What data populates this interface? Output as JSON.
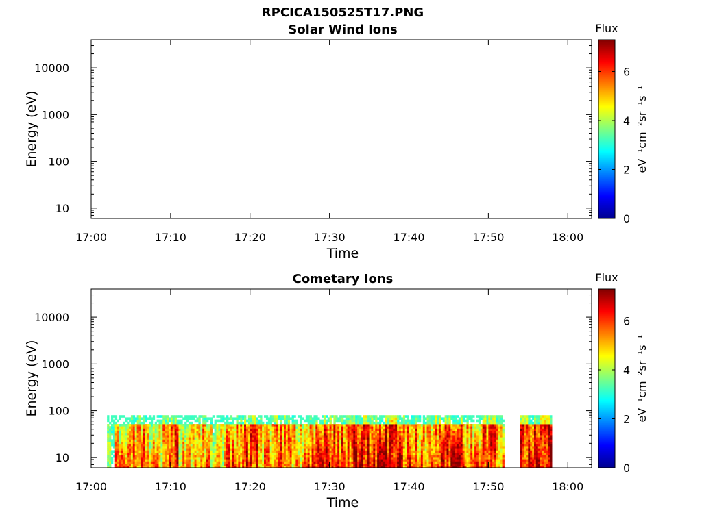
{
  "figure": {
    "title": "RPCICA150525T17.PNG"
  },
  "chart_data": [
    {
      "type": "heatmap",
      "title": "Solar Wind Ions",
      "xlabel": "Time",
      "ylabel": "Energy (eV)",
      "yscale": "log",
      "xlim": [
        "17:00",
        "18:03"
      ],
      "ylim": [
        6,
        40000
      ],
      "x_ticks": [
        "17:00",
        "17:10",
        "17:20",
        "17:30",
        "17:40",
        "17:50",
        "18:00"
      ],
      "y_ticks": [
        {
          "value": 10,
          "label": "10"
        },
        {
          "value": 100,
          "label": "100"
        },
        {
          "value": 1000,
          "label": "1000"
        },
        {
          "value": 10000,
          "label": "10000"
        }
      ],
      "colorbar": {
        "label": "Flux",
        "unit": "eV⁻¹cm⁻²sr⁻¹s⁻¹",
        "range": [
          0,
          7.3
        ],
        "ticks": [
          "0",
          "2",
          "4",
          "6"
        ]
      },
      "segments": []
    },
    {
      "type": "heatmap",
      "title": "Cometary Ions",
      "xlabel": "Time",
      "ylabel": "Energy (eV)",
      "yscale": "log",
      "xlim": [
        "17:00",
        "18:03"
      ],
      "ylim": [
        6,
        40000
      ],
      "x_ticks": [
        "17:00",
        "17:10",
        "17:20",
        "17:30",
        "17:40",
        "17:50",
        "18:00"
      ],
      "y_ticks": [
        {
          "value": 10,
          "label": "10"
        },
        {
          "value": 100,
          "label": "100"
        },
        {
          "value": 1000,
          "label": "1000"
        },
        {
          "value": 10000,
          "label": "10000"
        }
      ],
      "colorbar": {
        "label": "Flux",
        "unit": "eV⁻¹cm⁻²sr⁻¹s⁻¹",
        "range": [
          0,
          7.3
        ],
        "ticks": [
          "0",
          "2",
          "4",
          "6"
        ]
      },
      "energy_range": [
        6,
        80
      ],
      "segments": [
        {
          "start": "17:02",
          "end": "17:03",
          "flux": 3.5
        },
        {
          "start": "17:03",
          "end": "17:05",
          "flux": 5.2
        },
        {
          "start": "17:05",
          "end": "17:07",
          "flux": 5.8
        },
        {
          "start": "17:07",
          "end": "17:09",
          "flux": 5.0
        },
        {
          "start": "17:09",
          "end": "17:11",
          "flux": 6.2
        },
        {
          "start": "17:11",
          "end": "17:13",
          "flux": 5.0
        },
        {
          "start": "17:13",
          "end": "17:15",
          "flux": 5.6
        },
        {
          "start": "17:15",
          "end": "17:17",
          "flux": 4.6
        },
        {
          "start": "17:17",
          "end": "17:19",
          "flux": 5.8
        },
        {
          "start": "17:19",
          "end": "17:21",
          "flux": 6.2
        },
        {
          "start": "17:21",
          "end": "17:23",
          "flux": 5.4
        },
        {
          "start": "17:23",
          "end": "17:25",
          "flux": 6.0
        },
        {
          "start": "17:25",
          "end": "17:27",
          "flux": 5.3
        },
        {
          "start": "17:27",
          "end": "17:29",
          "flux": 5.9
        },
        {
          "start": "17:29",
          "end": "17:31",
          "flux": 6.3
        },
        {
          "start": "17:31",
          "end": "17:33",
          "flux": 6.0
        },
        {
          "start": "17:33",
          "end": "17:35",
          "flux": 6.6
        },
        {
          "start": "17:35",
          "end": "17:37",
          "flux": 6.4
        },
        {
          "start": "17:37",
          "end": "17:39",
          "flux": 6.8
        },
        {
          "start": "17:39",
          "end": "17:41",
          "flux": 6.0
        },
        {
          "start": "17:41",
          "end": "17:43",
          "flux": 5.6
        },
        {
          "start": "17:43",
          "end": "17:45",
          "flux": 6.2
        },
        {
          "start": "17:45",
          "end": "17:47",
          "flux": 6.4
        },
        {
          "start": "17:47",
          "end": "17:49",
          "flux": 5.6
        },
        {
          "start": "17:49",
          "end": "17:51",
          "flux": 6.3
        },
        {
          "start": "17:51",
          "end": "17:52",
          "flux": 5.5
        },
        {
          "start": "17:54",
          "end": "17:56",
          "flux": 6.5
        },
        {
          "start": "17:56",
          "end": "17:58",
          "flux": 6.8
        }
      ]
    }
  ]
}
